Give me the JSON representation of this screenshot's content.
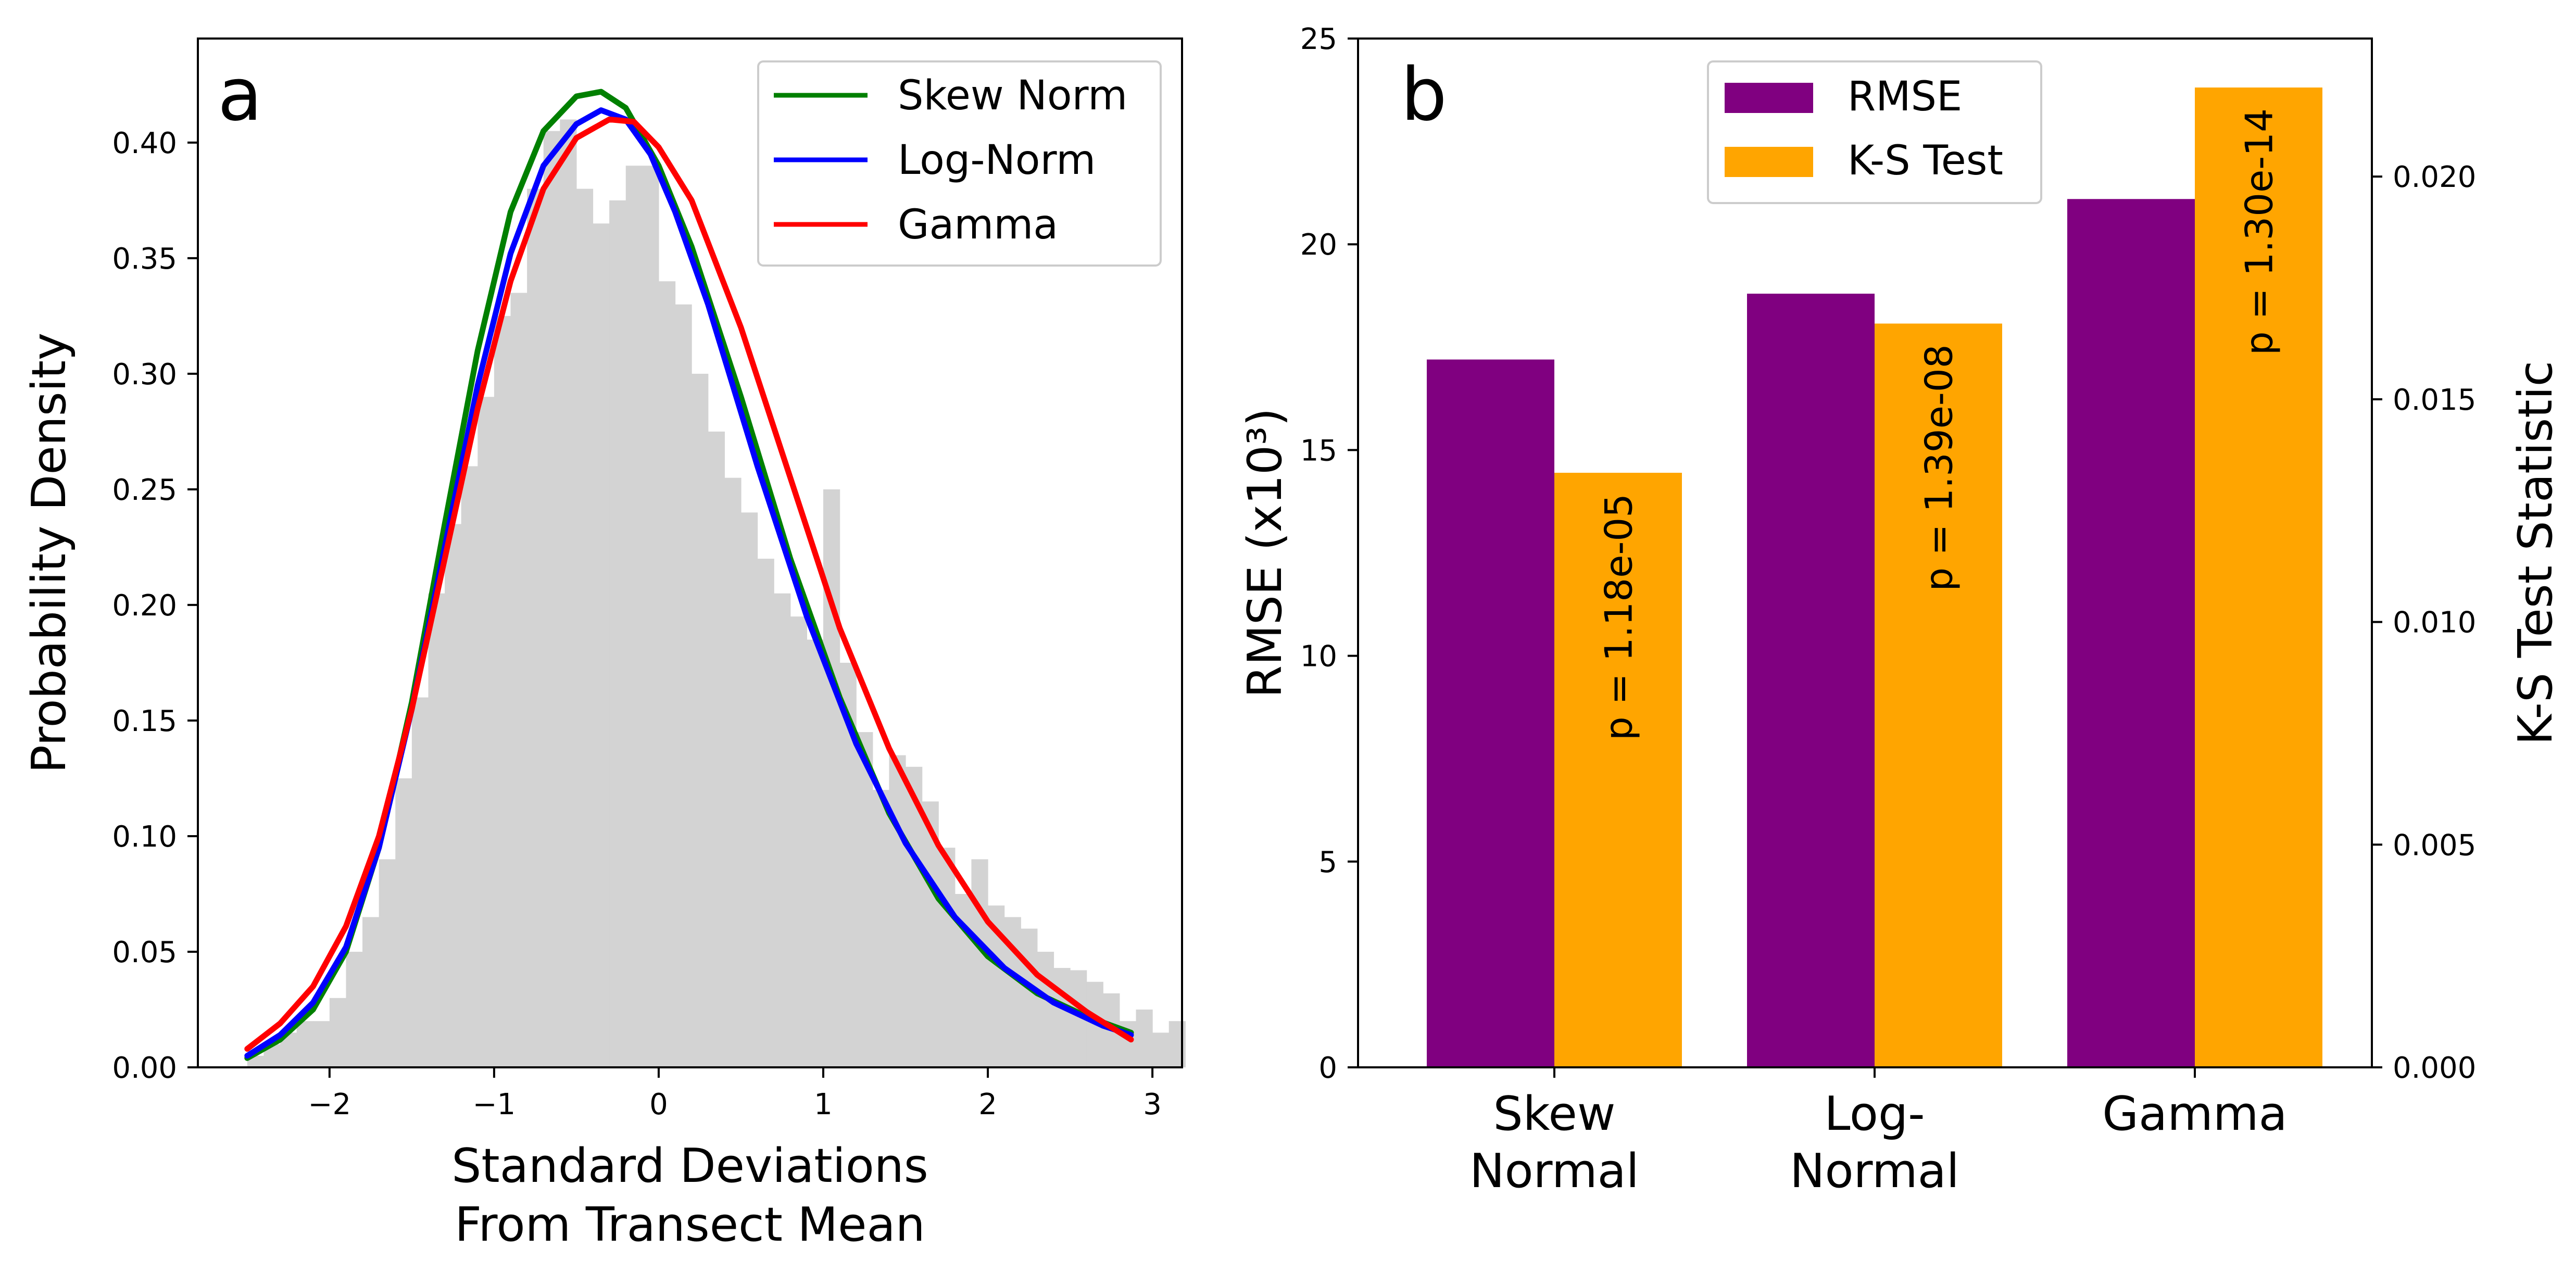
{
  "chart_data": [
    {
      "type": "line",
      "panel_label": "a",
      "xlabel": [
        "Standard Deviations",
        "From Transect Mean"
      ],
      "ylabel": "Probability Density",
      "xlim": [
        -2.8,
        3.18
      ],
      "ylim": [
        0.0,
        0.445
      ],
      "xticks": [
        -2,
        -1,
        0,
        1,
        2,
        3
      ],
      "xtick_labels": [
        "−2",
        "−1",
        "0",
        "1",
        "2",
        "3"
      ],
      "yticks": [
        0.0,
        0.05,
        0.1,
        0.15,
        0.2,
        0.25,
        0.3,
        0.35,
        0.4
      ],
      "ytick_labels": [
        "0.00",
        "0.05",
        "0.10",
        "0.15",
        "0.20",
        "0.25",
        "0.30",
        "0.35",
        "0.40"
      ],
      "grid": false,
      "legend_position": "top-right",
      "colors": {
        "histogram": "#d3d3d3",
        "skew_norm": "#008000",
        "log_norm": "#0000ff",
        "gamma": "#ff0000"
      },
      "histogram": {
        "bin_width": 0.1,
        "bin_edges_start": -2.5,
        "densities": [
          0.005,
          0.01,
          0.015,
          0.02,
          0.02,
          0.03,
          0.05,
          0.065,
          0.09,
          0.125,
          0.16,
          0.205,
          0.235,
          0.26,
          0.29,
          0.325,
          0.335,
          0.38,
          0.405,
          0.41,
          0.38,
          0.365,
          0.375,
          0.39,
          0.39,
          0.34,
          0.33,
          0.3,
          0.275,
          0.255,
          0.24,
          0.22,
          0.205,
          0.195,
          0.185,
          0.25,
          0.175,
          0.145,
          0.12,
          0.135,
          0.13,
          0.115,
          0.095,
          0.075,
          0.09,
          0.07,
          0.065,
          0.06,
          0.05,
          0.043,
          0.042,
          0.037,
          0.032,
          0.02,
          0.025,
          0.015,
          0.02
        ]
      },
      "series": [
        {
          "name": "Skew Norm",
          "x": [
            -2.5,
            -2.3,
            -2.1,
            -1.9,
            -1.7,
            -1.5,
            -1.3,
            -1.1,
            -0.9,
            -0.7,
            -0.5,
            -0.35,
            -0.2,
            0.0,
            0.2,
            0.5,
            0.8,
            1.1,
            1.4,
            1.7,
            2.0,
            2.3,
            2.6,
            2.87
          ],
          "y": [
            0.004,
            0.012,
            0.025,
            0.05,
            0.095,
            0.158,
            0.235,
            0.31,
            0.37,
            0.405,
            0.42,
            0.422,
            0.415,
            0.39,
            0.355,
            0.29,
            0.22,
            0.16,
            0.11,
            0.073,
            0.048,
            0.032,
            0.022,
            0.015
          ]
        },
        {
          "name": "Log-Norm",
          "x": [
            -2.5,
            -2.3,
            -2.1,
            -1.9,
            -1.7,
            -1.5,
            -1.3,
            -1.1,
            -0.9,
            -0.7,
            -0.5,
            -0.35,
            -0.2,
            -0.05,
            0.1,
            0.3,
            0.6,
            0.9,
            1.2,
            1.5,
            1.8,
            2.1,
            2.4,
            2.7,
            2.87
          ],
          "y": [
            0.005,
            0.014,
            0.028,
            0.052,
            0.095,
            0.155,
            0.225,
            0.295,
            0.352,
            0.39,
            0.408,
            0.414,
            0.41,
            0.395,
            0.37,
            0.33,
            0.26,
            0.195,
            0.14,
            0.097,
            0.065,
            0.043,
            0.028,
            0.018,
            0.014
          ]
        },
        {
          "name": "Gamma",
          "x": [
            -2.5,
            -2.3,
            -2.1,
            -1.9,
            -1.7,
            -1.5,
            -1.3,
            -1.1,
            -0.9,
            -0.7,
            -0.5,
            -0.3,
            -0.15,
            0.0,
            0.2,
            0.5,
            0.8,
            1.1,
            1.4,
            1.7,
            2.0,
            2.3,
            2.6,
            2.87
          ],
          "y": [
            0.008,
            0.019,
            0.035,
            0.061,
            0.1,
            0.155,
            0.22,
            0.285,
            0.34,
            0.38,
            0.402,
            0.41,
            0.409,
            0.398,
            0.375,
            0.32,
            0.255,
            0.19,
            0.138,
            0.096,
            0.063,
            0.04,
            0.024,
            0.012
          ]
        }
      ]
    },
    {
      "type": "bar",
      "panel_label": "b",
      "categories": [
        [
          "Skew",
          "Normal"
        ],
        [
          "Log-",
          "Normal"
        ],
        [
          "Gamma"
        ]
      ],
      "ylabel": "RMSE (x10³)",
      "y2label": "K-S Test Statistic",
      "ylim": [
        0,
        25
      ],
      "y2lim": [
        0,
        0.0231
      ],
      "yticks": [
        0,
        5,
        10,
        15,
        20,
        25
      ],
      "ytick_labels": [
        "0",
        "5",
        "10",
        "15",
        "20",
        "25"
      ],
      "y2ticks": [
        0.0,
        0.005,
        0.01,
        0.015,
        0.02
      ],
      "y2tick_labels": [
        "0.000",
        "0.005",
        "0.010",
        "0.015",
        "0.020"
      ],
      "grid": false,
      "legend_position": "top-center",
      "colors": {
        "rmse": "#800080",
        "ks": "#ffa500"
      },
      "series": [
        {
          "name": "RMSE",
          "axis": "left",
          "values": [
            17.2,
            18.8,
            21.1
          ]
        },
        {
          "name": "K-S Test",
          "axis": "right",
          "values": [
            0.01335,
            0.0167,
            0.022
          ]
        }
      ],
      "annotations": [
        "p = 1.18e-05",
        "p = 1.39e-08",
        "p = 1.30e-14"
      ]
    }
  ]
}
